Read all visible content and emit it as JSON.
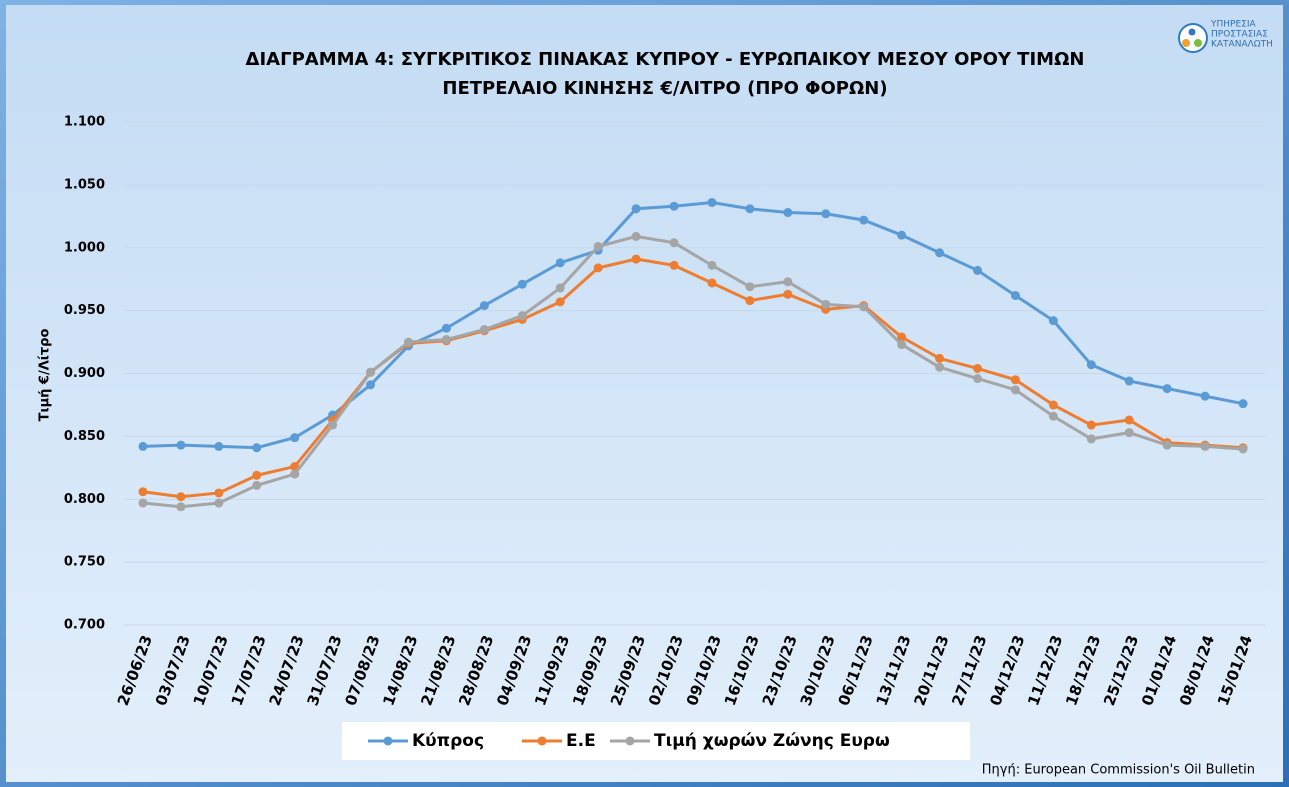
{
  "chart_data": {
    "type": "line",
    "title": [
      "ΔΙΑΓΡΑΜΜΑ 4: ΣΥΓΚΡΙΤΙΚΟΣ ΠΙΝΑΚΑΣ ΚΥΠΡΟΥ - ΕΥΡΩΠΑΙΚΟΥ ΜΕΣΟΥ ΟΡΟΥ ΤΙΜΩΝ",
      "ΠΕΤΡΕΛΑΙΟ ΚΙΝΗΣΗΣ €/ΛΙΤΡΟ (ΠΡΟ ΦΟΡΩΝ)"
    ],
    "y_label": "Τιμή €/Λίτρο",
    "source": "Πηγή: European Commission's Oil Bulletin",
    "logo": [
      "ΥΠΗΡΕΣΙΑ",
      "ΠΡΟΣΤΑΣΙΑΣ",
      "ΚΑΤΑΝΑΛΩΤΗ"
    ],
    "categories": [
      "26/06/23",
      "03/07/23",
      "10/07/23",
      "17/07/23",
      "24/07/23",
      "31/07/23",
      "07/08/23",
      "14/08/23",
      "21/08/23",
      "28/08/23",
      "04/09/23",
      "11/09/23",
      "18/09/23",
      "25/09/23",
      "02/10/23",
      "09/10/23",
      "16/10/23",
      "23/10/23",
      "30/10/23",
      "06/11/23",
      "13/11/23",
      "20/11/23",
      "27/11/23",
      "04/12/23",
      "11/12/23",
      "18/12/23",
      "25/12/23",
      "01/01/24",
      "08/01/24",
      "15/01/24"
    ],
    "series": [
      {
        "name": "Κύπρος",
        "color": "#5b9bd5",
        "values": [
          0.842,
          0.843,
          0.842,
          0.841,
          0.849,
          0.867,
          0.891,
          0.922,
          0.936,
          0.954,
          0.971,
          0.988,
          0.998,
          1.031,
          1.033,
          1.036,
          1.031,
          1.028,
          1.027,
          1.022,
          1.01,
          0.996,
          0.982,
          0.962,
          0.942,
          0.907,
          0.894,
          0.888,
          0.882,
          0.876
        ]
      },
      {
        "name": "Ε.Ε",
        "color": "#ed7d31",
        "values": [
          0.806,
          0.802,
          0.805,
          0.819,
          0.826,
          0.863,
          0.901,
          0.924,
          0.926,
          0.934,
          0.943,
          0.957,
          0.984,
          0.991,
          0.986,
          0.972,
          0.958,
          0.963,
          0.951,
          0.954,
          0.929,
          0.912,
          0.904,
          0.895,
          0.875,
          0.859,
          0.863,
          0.845,
          0.843,
          0.841
        ]
      },
      {
        "name": "Τιμή χωρών Ζώνης Ευρω",
        "color": "#a5a5a5",
        "values": [
          0.797,
          0.794,
          0.797,
          0.811,
          0.82,
          0.859,
          0.901,
          0.925,
          0.927,
          0.935,
          0.946,
          0.968,
          1.001,
          1.009,
          1.004,
          0.986,
          0.969,
          0.973,
          0.955,
          0.953,
          0.923,
          0.905,
          0.896,
          0.887,
          0.866,
          0.848,
          0.853,
          0.843,
          0.842,
          0.84
        ]
      }
    ],
    "ylim": [
      0.7,
      1.1
    ],
    "yticks": [
      {
        "value": 0.7,
        "label": "0.700"
      },
      {
        "value": 0.75,
        "label": "0.750"
      },
      {
        "value": 0.8,
        "label": "0.800"
      },
      {
        "value": 0.85,
        "label": "0.850"
      },
      {
        "value": 0.9,
        "label": "0.900"
      },
      {
        "value": 0.95,
        "label": "0.950"
      },
      {
        "value": 1.0,
        "label": "1.000"
      },
      {
        "value": 1.05,
        "label": "1.050"
      },
      {
        "value": 1.1,
        "label": "1.100"
      }
    ],
    "grid": true,
    "legend": "bottom"
  }
}
